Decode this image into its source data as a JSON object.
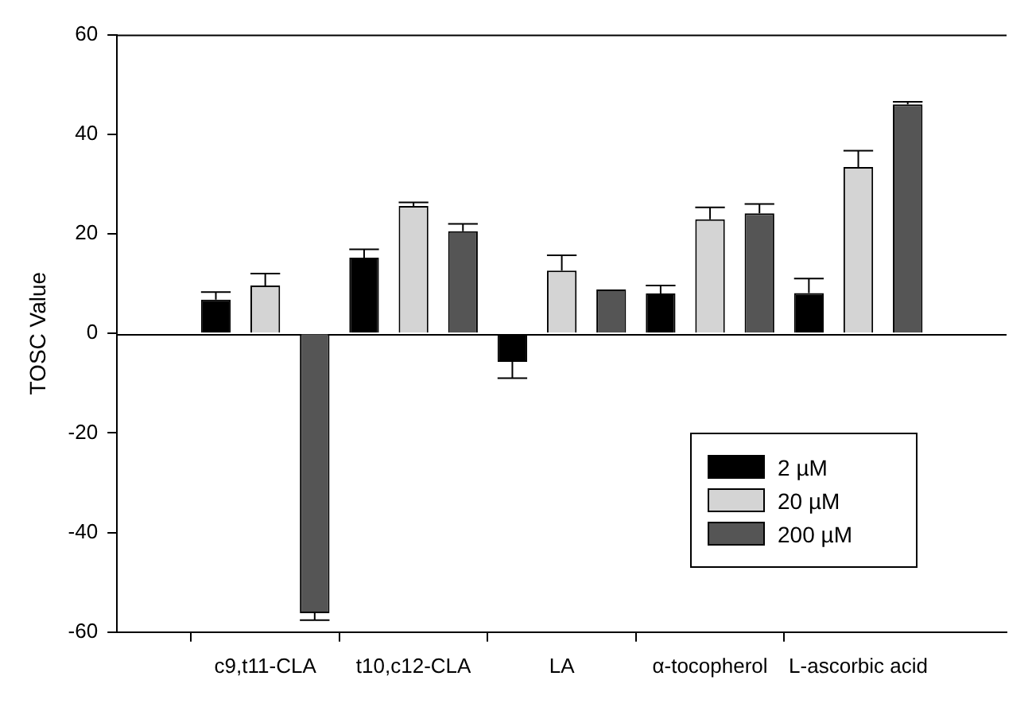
{
  "chart_data": {
    "type": "bar",
    "ylabel": "TOSC Value",
    "categories": [
      "c9,t11-CLA",
      "t10,c12-CLA",
      "LA",
      "α-tocopherol",
      "L-ascorbic acid"
    ],
    "series": [
      {
        "name": "2 µM",
        "color": "#000000",
        "values": [
          6.8,
          15.2,
          -5.7,
          8.0,
          8.1
        ],
        "errors": [
          1.5,
          1.7,
          3.3,
          1.6,
          2.9
        ]
      },
      {
        "name": "20 µM",
        "color": "#d4d4d4",
        "values": [
          9.6,
          25.6,
          12.6,
          22.9,
          33.4
        ],
        "errors": [
          2.4,
          0.7,
          3.1,
          2.4,
          3.3
        ]
      },
      {
        "name": "200 µM",
        "color": "#555555",
        "values": [
          -56.2,
          20.5,
          8.8,
          24.1,
          46.0
        ],
        "errors": [
          1.4,
          1.5,
          null,
          1.9,
          0.5
        ]
      }
    ],
    "ylim": [
      -60,
      60
    ],
    "yticks": [
      -60,
      -40,
      -20,
      0,
      20,
      40,
      60
    ],
    "ref_lines": [
      {
        "axis": "y",
        "value": 0,
        "color": "#000000"
      }
    ],
    "grid": false,
    "legend": "bottom right"
  }
}
